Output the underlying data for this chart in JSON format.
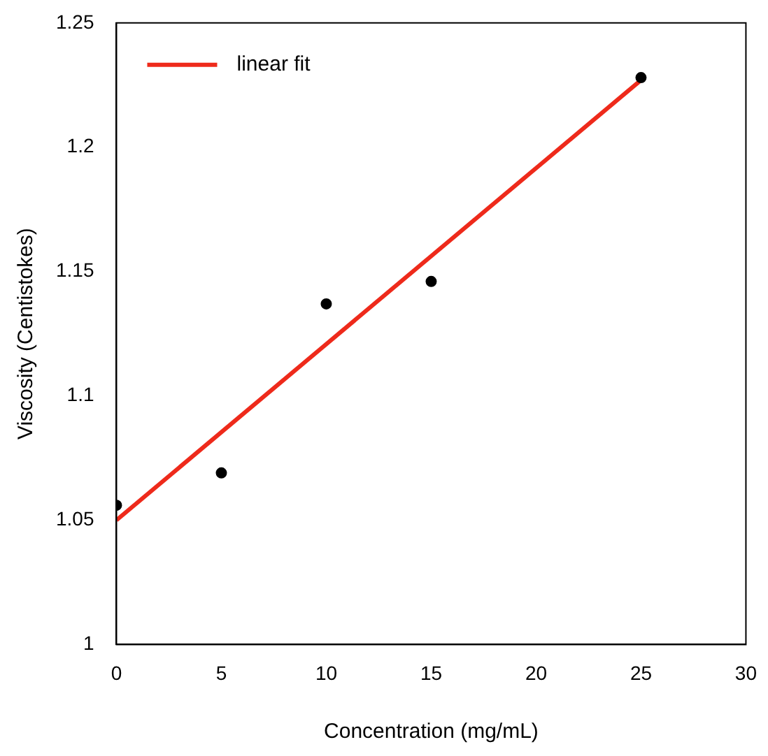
{
  "chart_data": {
    "type": "scatter",
    "xlabel": "Concentration (mg/mL)",
    "ylabel": "Viscosity (Centistokes)",
    "x": [
      0,
      5,
      10,
      15,
      25
    ],
    "series": [
      {
        "color": "#000000",
        "values": [
          1.056,
          1.069,
          1.137,
          1.146,
          1.228
        ],
        "marker": "circle"
      },
      {
        "type": "line",
        "name": "linear fit",
        "color": "#ee2a1b",
        "x": [
          0,
          25
        ],
        "values": [
          1.05,
          1.227
        ],
        "marker": "none"
      }
    ],
    "xlim": [
      0,
      30
    ],
    "xticks": [
      0,
      5,
      10,
      15,
      20,
      25,
      30
    ],
    "ylim": [
      1,
      1.25
    ],
    "yticks": [
      1,
      1.05,
      1.1,
      1.15,
      1.2,
      1.25
    ],
    "grid": false,
    "legend": "top left"
  }
}
